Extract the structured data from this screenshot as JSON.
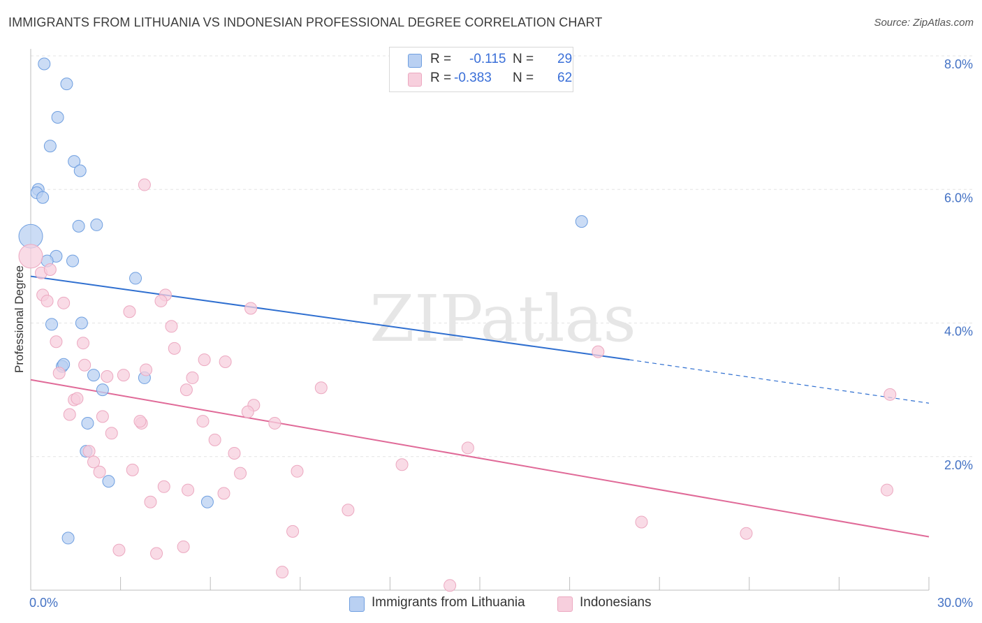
{
  "chart_data": {
    "type": "scatter",
    "title": "IMMIGRANTS FROM LITHUANIA VS INDONESIAN PROFESSIONAL DEGREE CORRELATION CHART",
    "source": "Source: ZipAtlas.com",
    "xlabel": "",
    "ylabel": "Professional Degree",
    "xlim": [
      0,
      30
    ],
    "ylim": [
      0,
      8
    ],
    "x_tick_labels": [
      "0.0%",
      "30.0%"
    ],
    "y_ticks": [
      2,
      4,
      6,
      8
    ],
    "y_tick_labels": [
      "2.0%",
      "4.0%",
      "6.0%",
      "8.0%"
    ],
    "watermark": "ZIPatlas",
    "legend": {
      "rows": [
        {
          "r_label": "R =",
          "r_value": "-0.115",
          "n_label": "N =",
          "n_value": "29"
        },
        {
          "r_label": "R =",
          "r_value": "-0.383",
          "n_label": "N =",
          "n_value": "62"
        }
      ]
    },
    "series": [
      {
        "name": "Immigrants from Lithuania",
        "color": "#6f9fe0",
        "fill": "#b9d0f2",
        "line_color": "#2f6fd0",
        "trend": {
          "x0": 0,
          "y0": 4.7,
          "x1": 20.0,
          "y1": 3.45,
          "dash_to_x": 30,
          "dash_to_y": 2.8
        },
        "points": [
          {
            "x": 0.0,
            "y": 5.3,
            "big": true
          },
          {
            "x": 0.25,
            "y": 6.0
          },
          {
            "x": 0.2,
            "y": 5.95
          },
          {
            "x": 0.4,
            "y": 5.88
          },
          {
            "x": 0.45,
            "y": 7.88
          },
          {
            "x": 1.2,
            "y": 7.58
          },
          {
            "x": 0.9,
            "y": 7.08
          },
          {
            "x": 0.65,
            "y": 6.65
          },
          {
            "x": 1.45,
            "y": 6.42
          },
          {
            "x": 1.65,
            "y": 6.28
          },
          {
            "x": 1.6,
            "y": 5.45
          },
          {
            "x": 2.2,
            "y": 5.47
          },
          {
            "x": 0.85,
            "y": 5.0
          },
          {
            "x": 0.55,
            "y": 4.93
          },
          {
            "x": 1.4,
            "y": 4.93
          },
          {
            "x": 3.5,
            "y": 4.67
          },
          {
            "x": 0.7,
            "y": 3.98
          },
          {
            "x": 1.7,
            "y": 4.0
          },
          {
            "x": 1.05,
            "y": 3.35
          },
          {
            "x": 1.1,
            "y": 3.38
          },
          {
            "x": 2.1,
            "y": 3.22
          },
          {
            "x": 3.8,
            "y": 3.18
          },
          {
            "x": 2.4,
            "y": 3.0
          },
          {
            "x": 1.9,
            "y": 2.5
          },
          {
            "x": 1.85,
            "y": 2.08
          },
          {
            "x": 2.6,
            "y": 1.63
          },
          {
            "x": 5.9,
            "y": 1.32
          },
          {
            "x": 1.25,
            "y": 0.78
          },
          {
            "x": 18.4,
            "y": 5.52
          }
        ]
      },
      {
        "name": "Indonesians",
        "color": "#eca8c0",
        "fill": "#f7cfdd",
        "line_color": "#e06a98",
        "trend": {
          "x0": 0,
          "y0": 3.15,
          "x1": 30,
          "y1": 0.8
        },
        "points": [
          {
            "x": 0.0,
            "y": 5.0,
            "big": true
          },
          {
            "x": 0.35,
            "y": 4.75
          },
          {
            "x": 0.65,
            "y": 4.8
          },
          {
            "x": 3.8,
            "y": 6.07
          },
          {
            "x": 0.4,
            "y": 4.42
          },
          {
            "x": 0.55,
            "y": 4.33
          },
          {
            "x": 1.1,
            "y": 4.3
          },
          {
            "x": 3.3,
            "y": 4.17
          },
          {
            "x": 4.5,
            "y": 4.42
          },
          {
            "x": 4.35,
            "y": 4.33
          },
          {
            "x": 7.35,
            "y": 4.22
          },
          {
            "x": 4.7,
            "y": 3.95
          },
          {
            "x": 0.85,
            "y": 3.72
          },
          {
            "x": 1.75,
            "y": 3.7
          },
          {
            "x": 4.8,
            "y": 3.62
          },
          {
            "x": 1.8,
            "y": 3.37
          },
          {
            "x": 0.95,
            "y": 3.25
          },
          {
            "x": 3.1,
            "y": 3.22
          },
          {
            "x": 2.55,
            "y": 3.2
          },
          {
            "x": 3.85,
            "y": 3.3
          },
          {
            "x": 5.8,
            "y": 3.45
          },
          {
            "x": 6.5,
            "y": 3.42
          },
          {
            "x": 5.4,
            "y": 3.18
          },
          {
            "x": 5.2,
            "y": 3.0
          },
          {
            "x": 9.7,
            "y": 3.03
          },
          {
            "x": 1.45,
            "y": 2.85
          },
          {
            "x": 1.55,
            "y": 2.87
          },
          {
            "x": 7.45,
            "y": 2.77
          },
          {
            "x": 7.25,
            "y": 2.67
          },
          {
            "x": 1.3,
            "y": 2.63
          },
          {
            "x": 2.4,
            "y": 2.6
          },
          {
            "x": 3.7,
            "y": 2.5
          },
          {
            "x": 3.65,
            "y": 2.53
          },
          {
            "x": 5.75,
            "y": 2.53
          },
          {
            "x": 8.15,
            "y": 2.5
          },
          {
            "x": 2.7,
            "y": 2.35
          },
          {
            "x": 6.15,
            "y": 2.25
          },
          {
            "x": 1.95,
            "y": 2.08
          },
          {
            "x": 6.8,
            "y": 2.05
          },
          {
            "x": 14.6,
            "y": 2.13
          },
          {
            "x": 2.1,
            "y": 1.92
          },
          {
            "x": 12.4,
            "y": 1.88
          },
          {
            "x": 2.3,
            "y": 1.77
          },
          {
            "x": 3.4,
            "y": 1.8
          },
          {
            "x": 7.0,
            "y": 1.75
          },
          {
            "x": 8.9,
            "y": 1.78
          },
          {
            "x": 4.45,
            "y": 1.55
          },
          {
            "x": 5.25,
            "y": 1.5
          },
          {
            "x": 6.45,
            "y": 1.45
          },
          {
            "x": 4.0,
            "y": 1.32
          },
          {
            "x": 10.6,
            "y": 1.2
          },
          {
            "x": 28.6,
            "y": 1.5
          },
          {
            "x": 20.4,
            "y": 1.02
          },
          {
            "x": 23.9,
            "y": 0.85
          },
          {
            "x": 8.75,
            "y": 0.88
          },
          {
            "x": 5.1,
            "y": 0.65
          },
          {
            "x": 2.95,
            "y": 0.6
          },
          {
            "x": 4.2,
            "y": 0.55
          },
          {
            "x": 8.4,
            "y": 0.27
          },
          {
            "x": 14.0,
            "y": 0.07
          },
          {
            "x": 18.95,
            "y": 3.57
          },
          {
            "x": 28.7,
            "y": 2.93
          }
        ]
      }
    ]
  }
}
